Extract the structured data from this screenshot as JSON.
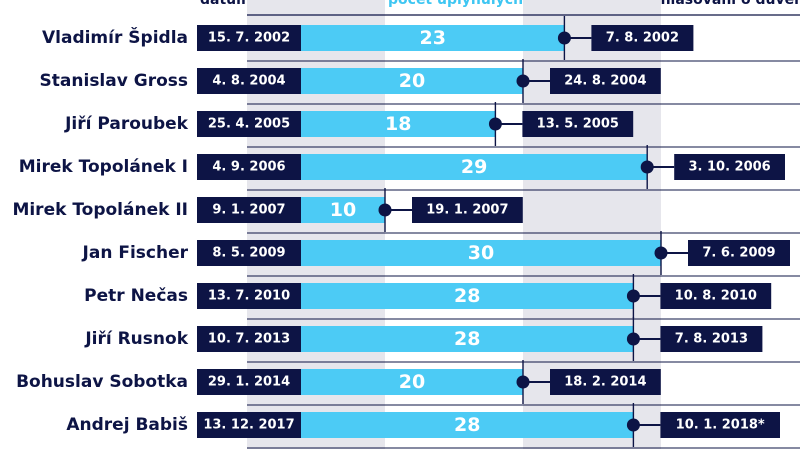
{
  "headers": {
    "start_date": "datum jmenování",
    "days": "počet uplynulých dní",
    "end_date": "datum hlasování o důvěře"
  },
  "colors": {
    "navy": "#0d1445",
    "bar": "#4ccbf5",
    "band": "#e6e6ec",
    "white": "#ffffff"
  },
  "chart_data": {
    "type": "bar",
    "orientation": "horizontal",
    "title": "",
    "xlabel": "počet uplynulých dní",
    "ylabel": "",
    "xlim": [
      0,
      30
    ],
    "grid_bands": [
      [
        0,
        10
      ],
      [
        20,
        30
      ]
    ],
    "categories": [
      "Vladimír Špidla",
      "Stanislav Gross",
      "Jiří Paroubek",
      "Mirek Topolánek I",
      "Mirek Topolánek II",
      "Jan Fischer",
      "Petr Nečas",
      "Jiří Rusnok",
      "Bohuslav Sobotka",
      "Andrej Babiš"
    ],
    "values": [
      23,
      20,
      18,
      29,
      10,
      30,
      28,
      28,
      20,
      28
    ],
    "start_dates": [
      "15. 7. 2002",
      "4. 8. 2004",
      "25. 4. 2005",
      "4. 9. 2006",
      "9. 1. 2007",
      "8. 5. 2009",
      "13. 7. 2010",
      "10. 7. 2013",
      "29. 1. 2014",
      "13. 12. 2017"
    ],
    "end_dates": [
      "7. 8. 2002",
      "24. 8. 2004",
      "13. 5. 2005",
      "3. 10. 2006",
      "19. 1. 2007",
      "7. 6. 2009",
      "10. 8. 2010",
      "7. 8. 2013",
      "18. 2. 2014",
      "10. 1. 2018*"
    ]
  }
}
